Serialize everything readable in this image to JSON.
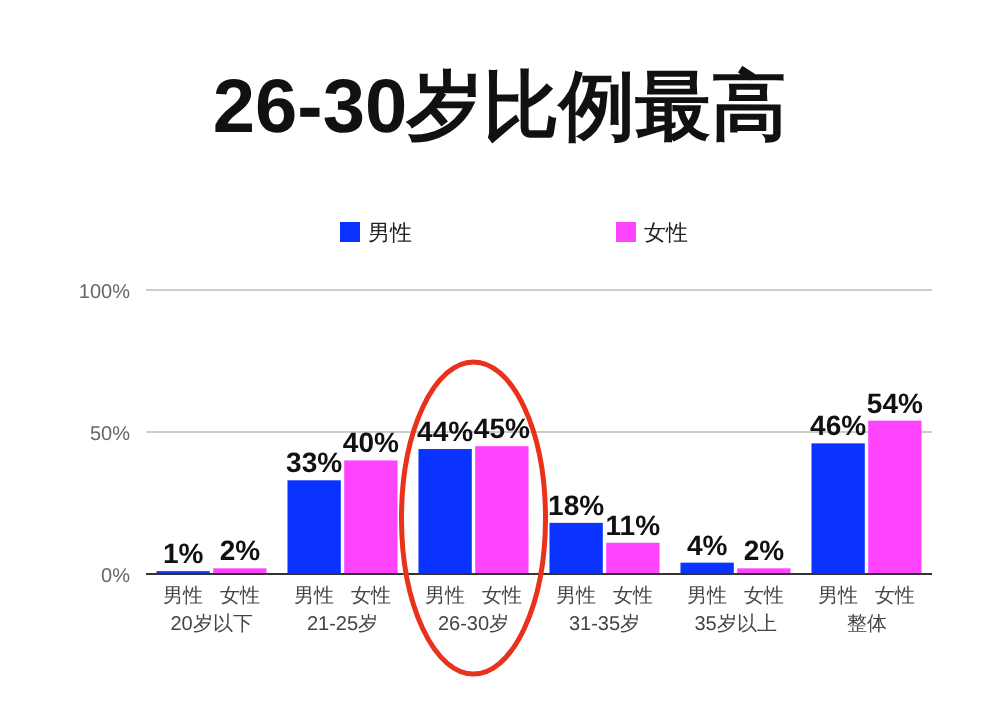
{
  "chart_data": {
    "type": "bar",
    "title": "26-30岁比例最高",
    "categories": [
      "20岁以下",
      "21-25岁",
      "26-30岁",
      "31-35岁",
      "35岁以上",
      "整体"
    ],
    "series": [
      {
        "name": "男性",
        "color": "#0a33ff",
        "values": [
          1,
          33,
          44,
          18,
          4,
          46
        ],
        "value_labels": [
          "1%",
          "33%",
          "44%",
          "18%",
          "4%",
          "46%"
        ]
      },
      {
        "name": "女性",
        "color": "#ff44ff",
        "values": [
          2,
          40,
          45,
          11,
          2,
          54
        ],
        "value_labels": [
          "2%",
          "40%",
          "45%",
          "11%",
          "2%",
          "54%"
        ]
      }
    ],
    "ylim": [
      0,
      100
    ],
    "yticks": [
      {
        "value": 0,
        "label": "0%"
      },
      {
        "value": 50,
        "label": "50%"
      },
      {
        "value": 100,
        "label": "100%"
      }
    ],
    "grid": "y",
    "legend": "top"
  }
}
